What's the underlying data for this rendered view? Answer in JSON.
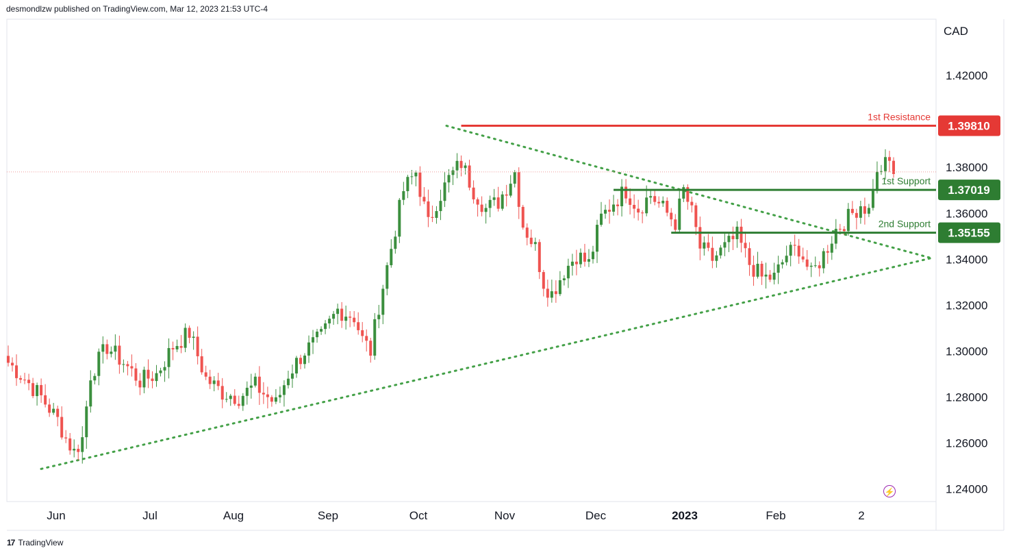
{
  "header": {
    "published": "desmondlzw published on TradingView.com, Mar 12, 2023 21:53 UTC-4"
  },
  "footer": {
    "brand": "TradingView",
    "mark": "17"
  },
  "icons": {
    "flash": "flash-icon"
  },
  "colors": {
    "up": "#3b8f3e",
    "down": "#ef5350",
    "resistance": "#e53935",
    "support": "#2e7d32",
    "trend": "#43a047",
    "current": "#ef9a9a"
  },
  "chart_data": {
    "type": "candlestick",
    "quote_currency": "CAD",
    "x_ticks": [
      "Jun",
      "Jul",
      "Aug",
      "Sep",
      "Oct",
      "Nov",
      "Dec",
      "2023",
      "Feb",
      "2"
    ],
    "y_ticks": [
      "1.42000",
      "1.38000",
      "1.36000",
      "1.34000",
      "1.32000",
      "1.30000",
      "1.28000",
      "1.26000",
      "1.24000"
    ],
    "ylim": [
      1.2345,
      1.4445
    ],
    "levels": [
      {
        "label": "1st Resistance",
        "value": "1.39810",
        "kind": "resistance",
        "start": 110
      },
      {
        "label": "1st Support",
        "value": "1.37019",
        "kind": "support",
        "start": 147
      },
      {
        "label": "2nd Support",
        "value": "1.35155",
        "kind": "support",
        "start": 161
      }
    ],
    "current_price": 1.378,
    "path": [
      [
        0,
        1.295
      ],
      [
        4,
        1.288
      ],
      [
        8,
        1.28
      ],
      [
        12,
        1.27
      ],
      [
        14,
        1.262
      ],
      [
        16,
        1.256
      ],
      [
        18,
        1.262
      ],
      [
        20,
        1.29
      ],
      [
        24,
        1.302
      ],
      [
        28,
        1.295
      ],
      [
        32,
        1.287
      ],
      [
        36,
        1.29
      ],
      [
        40,
        1.302
      ],
      [
        44,
        1.308
      ],
      [
        46,
        1.298
      ],
      [
        48,
        1.288
      ],
      [
        52,
        1.282
      ],
      [
        56,
        1.28
      ],
      [
        60,
        1.285
      ],
      [
        63,
        1.28
      ],
      [
        65,
        1.277
      ],
      [
        68,
        1.29
      ],
      [
        72,
        1.3
      ],
      [
        76,
        1.306
      ],
      [
        80,
        1.318
      ],
      [
        84,
        1.315
      ],
      [
        86,
        1.305
      ],
      [
        88,
        1.3
      ],
      [
        90,
        1.32
      ],
      [
        93,
        1.345
      ],
      [
        96,
        1.37
      ],
      [
        99,
        1.378
      ],
      [
        102,
        1.355
      ],
      [
        104,
        1.365
      ],
      [
        107,
        1.375
      ],
      [
        110,
        1.382
      ],
      [
        113,
        1.37
      ],
      [
        116,
        1.362
      ],
      [
        119,
        1.365
      ],
      [
        123,
        1.378
      ],
      [
        125,
        1.355
      ],
      [
        128,
        1.345
      ],
      [
        130,
        1.33
      ],
      [
        132,
        1.325
      ],
      [
        135,
        1.335
      ],
      [
        138,
        1.342
      ],
      [
        141,
        1.338
      ],
      [
        144,
        1.358
      ],
      [
        147,
        1.365
      ],
      [
        150,
        1.37
      ],
      [
        153,
        1.362
      ],
      [
        156,
        1.368
      ],
      [
        159,
        1.362
      ],
      [
        162,
        1.356
      ],
      [
        164,
        1.37
      ],
      [
        166,
        1.36
      ],
      [
        168,
        1.345
      ],
      [
        171,
        1.34
      ],
      [
        174,
        1.345
      ],
      [
        177,
        1.35
      ],
      [
        180,
        1.338
      ],
      [
        183,
        1.332
      ],
      [
        186,
        1.332
      ],
      [
        189,
        1.342
      ],
      [
        192,
        1.345
      ],
      [
        195,
        1.333
      ],
      [
        198,
        1.342
      ],
      [
        201,
        1.353
      ],
      [
        204,
        1.358
      ],
      [
        207,
        1.364
      ],
      [
        209,
        1.361
      ],
      [
        210,
        1.372
      ],
      [
        212,
        1.38
      ],
      [
        214,
        1.382
      ],
      [
        215,
        1.378
      ]
    ]
  }
}
